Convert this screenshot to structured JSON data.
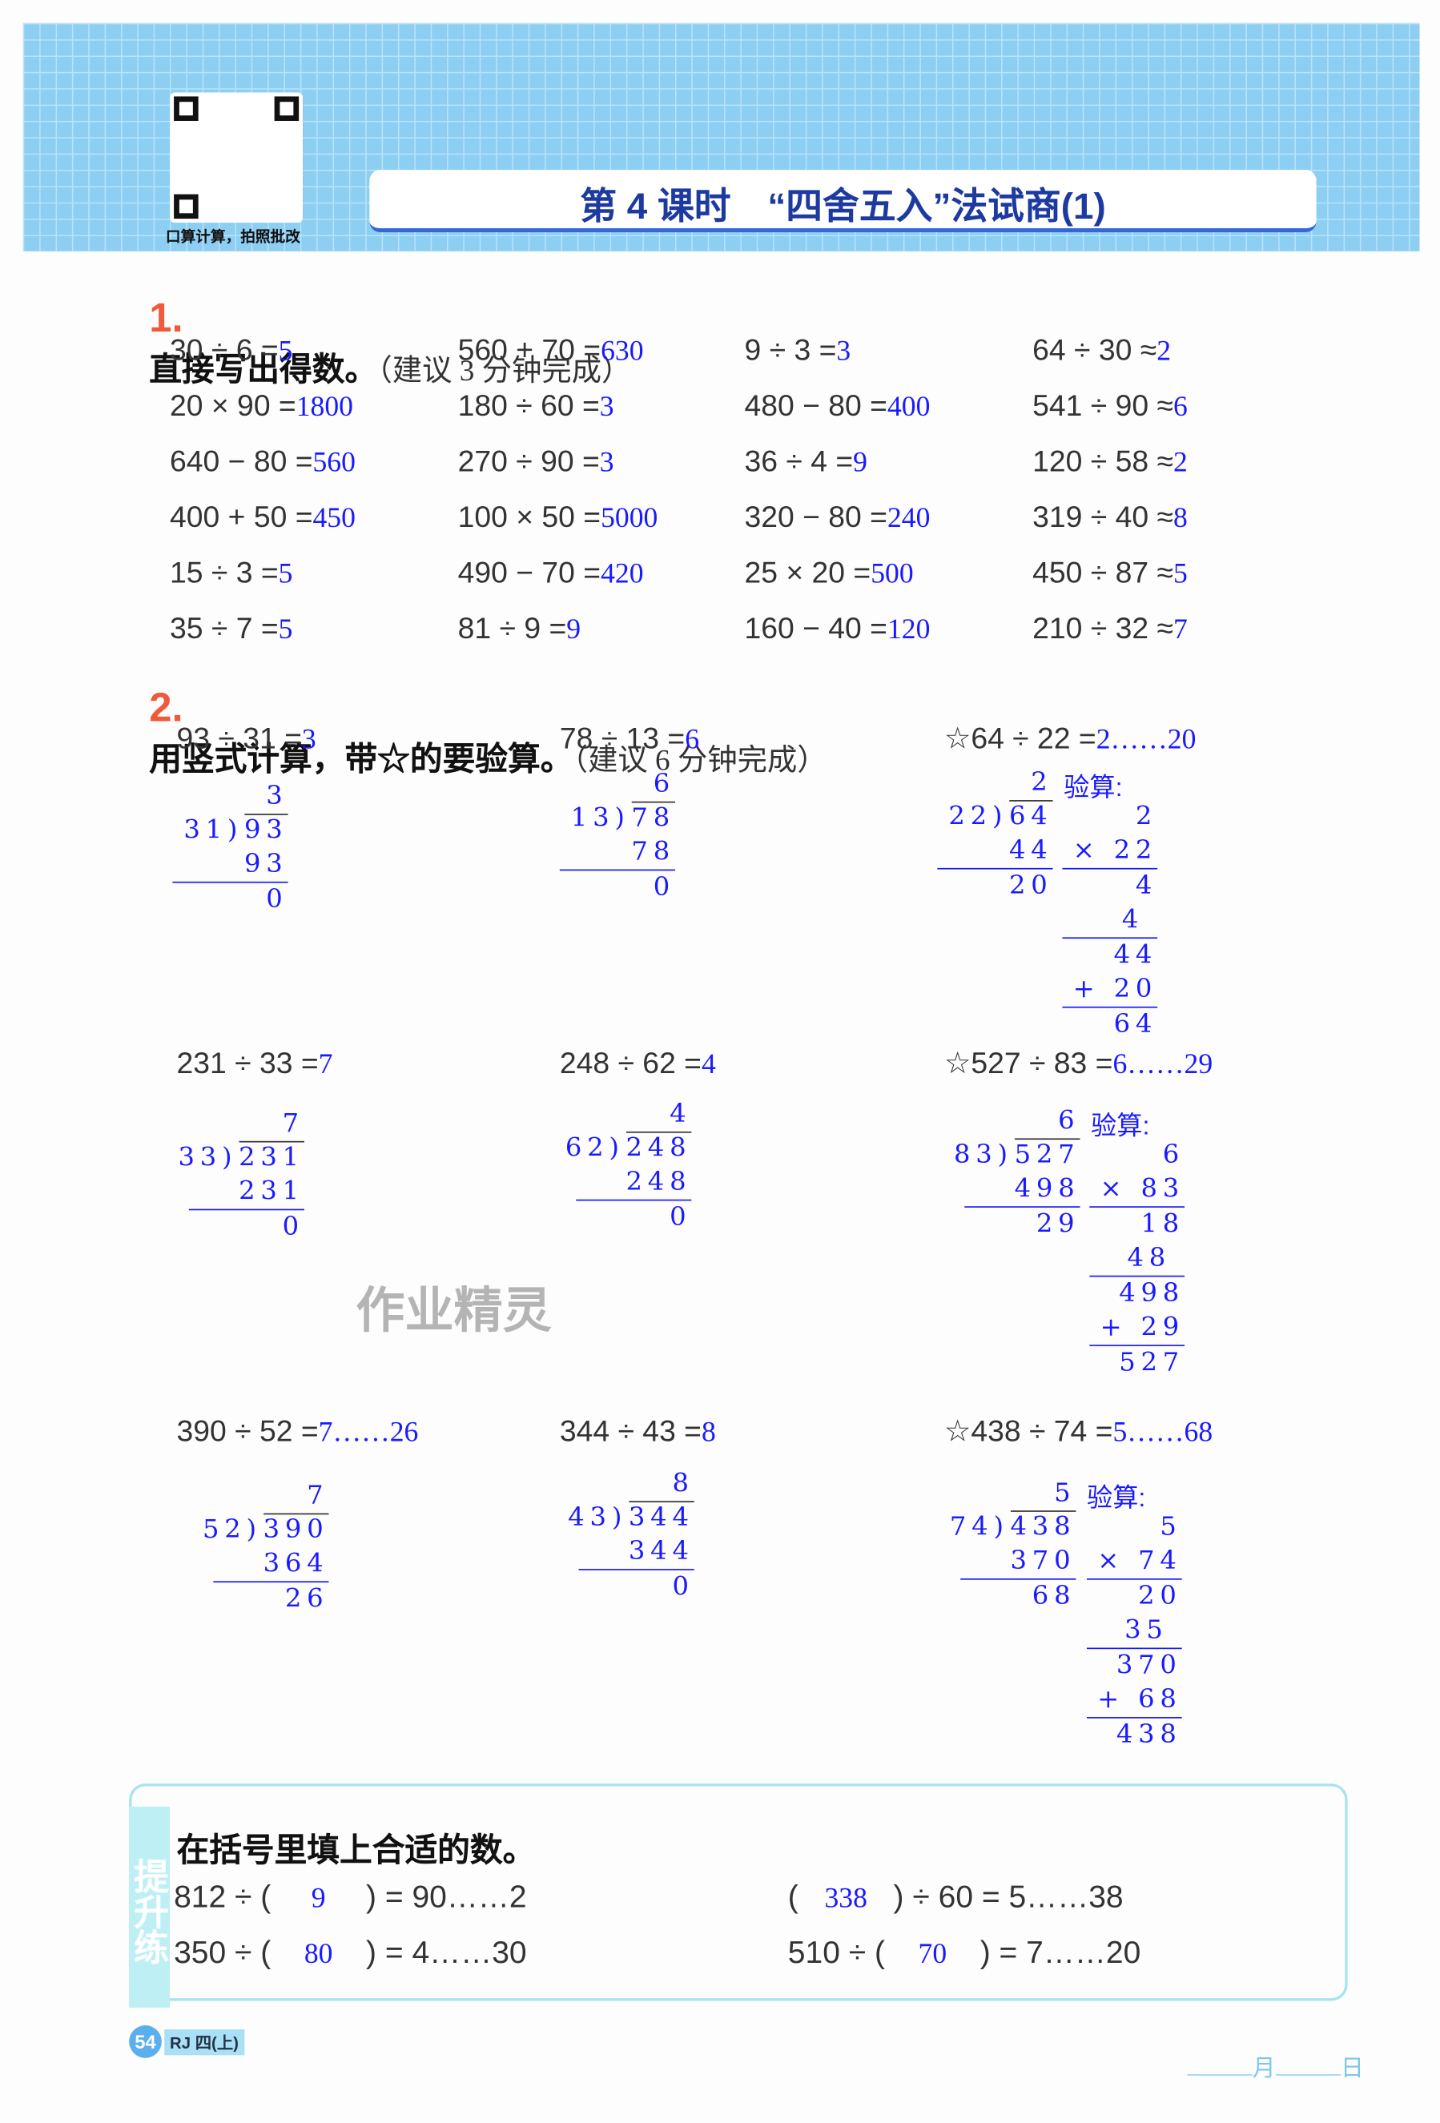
{
  "header": {
    "title": "第 4 课时　“四舍五入”法试商(1)",
    "qr_caption": "口算计算，拍照批改",
    "watermark": "作业精灵"
  },
  "section1": {
    "number": "1.",
    "title": "直接写出得数。",
    "hint": "（建议 3 分钟完成）",
    "items": [
      {
        "q": "30 ÷ 6 =",
        "a": "5"
      },
      {
        "q": "560 + 70 =",
        "a": "630"
      },
      {
        "q": "9 ÷ 3 =",
        "a": "3"
      },
      {
        "q": "64 ÷ 30 ≈",
        "a": "2"
      },
      {
        "q": "20 × 90 =",
        "a": "1800"
      },
      {
        "q": "180 ÷ 60 =",
        "a": "3"
      },
      {
        "q": "480 − 80 =",
        "a": "400"
      },
      {
        "q": "541 ÷ 90 ≈",
        "a": "6"
      },
      {
        "q": "640 − 80 =",
        "a": "560"
      },
      {
        "q": "270 ÷ 90 =",
        "a": "3"
      },
      {
        "q": "36 ÷ 4 =",
        "a": "9"
      },
      {
        "q": "120 ÷ 58 ≈",
        "a": "2"
      },
      {
        "q": "400 + 50 =",
        "a": "450"
      },
      {
        "q": "100 × 50 =",
        "a": "5000"
      },
      {
        "q": "320 − 80 =",
        "a": "240"
      },
      {
        "q": "319 ÷ 40 ≈",
        "a": "8"
      },
      {
        "q": "15 ÷ 3 =",
        "a": "5"
      },
      {
        "q": "490 − 70 =",
        "a": "420"
      },
      {
        "q": "25 × 20 =",
        "a": "500"
      },
      {
        "q": "450 ÷ 87 ≈",
        "a": "5"
      },
      {
        "q": "35 ÷ 7 =",
        "a": "5"
      },
      {
        "q": "81 ÷ 9 =",
        "a": "9"
      },
      {
        "q": "160 − 40 =",
        "a": "120"
      },
      {
        "q": "210 ÷ 32 ≈",
        "a": "7"
      }
    ]
  },
  "section2": {
    "number": "2.",
    "title": "用竖式计算，带☆的要验算。",
    "hint": "（建议 6 分钟完成）",
    "check_label": "验算:",
    "problems": [
      {
        "q": "93 ÷ 31 =",
        "a": "3",
        "quotient": "3",
        "divisor": "31",
        "dividend": "93",
        "product": "93",
        "remainder": "0"
      },
      {
        "q": "78 ÷ 13 =",
        "a": "6",
        "quotient": "6",
        "divisor": "13",
        "dividend": "78",
        "product": "78",
        "remainder": "0"
      },
      {
        "q": "☆64 ÷ 22 =",
        "a": "2……20",
        "quotient": "2",
        "divisor": "22",
        "dividend": "64",
        "product": "44",
        "remainder": "20",
        "check": [
          {
            "t": "2"
          },
          {
            "t": "× 22",
            "rule": true
          },
          {
            "t": "4"
          },
          {
            "t": "4 ",
            "rule": true
          },
          {
            "t": "44"
          },
          {
            "t": "+ 20",
            "rule": true
          },
          {
            "t": "64"
          }
        ]
      },
      {
        "q": "231 ÷ 33 =",
        "a": "7",
        "quotient": "7",
        "divisor": "33",
        "dividend": "231",
        "product": "231",
        "remainder": "0"
      },
      {
        "q": "248 ÷ 62 =",
        "a": "4",
        "quotient": "4",
        "divisor": "62",
        "dividend": "248",
        "product": "248",
        "remainder": "0"
      },
      {
        "q": "☆527 ÷ 83 =",
        "a": "6……29",
        "quotient": "6",
        "divisor": "83",
        "dividend": "527",
        "product": "498",
        "remainder": "29",
        "check": [
          {
            "t": "6"
          },
          {
            "t": "× 83",
            "rule": true
          },
          {
            "t": "18"
          },
          {
            "t": "48 ",
            "rule": true
          },
          {
            "t": "498"
          },
          {
            "t": "+ 29",
            "rule": true
          },
          {
            "t": "527"
          }
        ]
      },
      {
        "q": "390 ÷ 52 =",
        "a": "7……26",
        "quotient": "7",
        "divisor": "52",
        "dividend": "390",
        "product": "364",
        "remainder": "26"
      },
      {
        "q": "344 ÷ 43 =",
        "a": "8",
        "quotient": "8",
        "divisor": "43",
        "dividend": "344",
        "product": "344",
        "remainder": "0"
      },
      {
        "q": "☆438 ÷ 74 =",
        "a": "5……68",
        "quotient": "5",
        "divisor": "74",
        "dividend": "438",
        "product": "370",
        "remainder": "68",
        "check": [
          {
            "t": "5"
          },
          {
            "t": "× 74",
            "rule": true
          },
          {
            "t": "20"
          },
          {
            "t": "35 ",
            "rule": true
          },
          {
            "t": "370"
          },
          {
            "t": "+ 68",
            "rule": true
          },
          {
            "t": "438"
          }
        ]
      }
    ]
  },
  "boost": {
    "tab": "提升练",
    "title": "在括号里填上合适的数。",
    "items": [
      {
        "pre": "812 ÷ (",
        "a": "9",
        "post": ") = 90……2"
      },
      {
        "pre": "(",
        "a": "338",
        "post": ") ÷ 60 = 5……38"
      },
      {
        "pre": "350 ÷ (",
        "a": "80",
        "post": ") = 4……30"
      },
      {
        "pre": "510 ÷ (",
        "a": "70",
        "post": ") = 7……20"
      }
    ]
  },
  "footer": {
    "page": "54",
    "edition": "RJ 四(上)",
    "month": "月",
    "day": "日"
  },
  "colors": {
    "answer": "#1a1aff",
    "header": "#8dcff3",
    "title": "#1d3aa0",
    "section_number": "#f05a3a"
  }
}
